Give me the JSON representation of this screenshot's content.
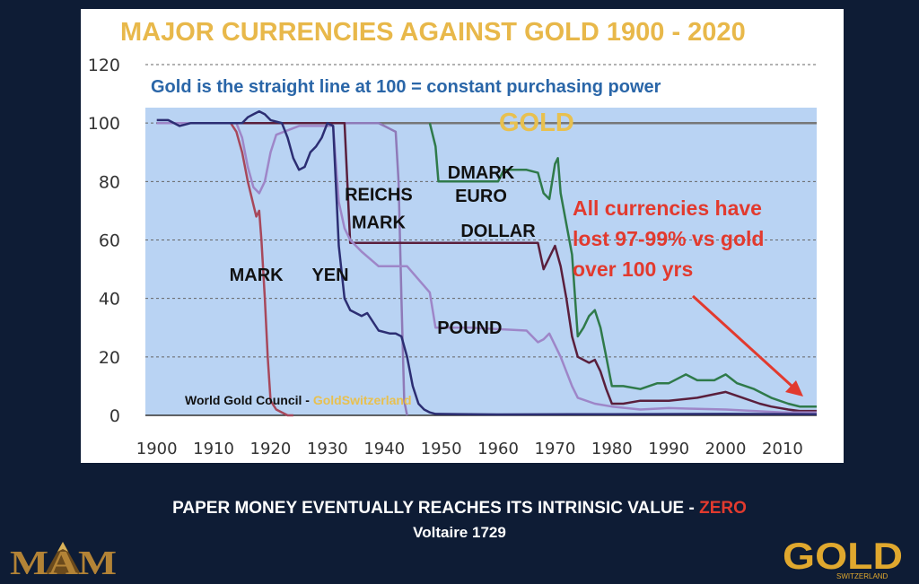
{
  "colors": {
    "background": "#0e1c35",
    "plot_background": "#b9d3f3",
    "title": "#e8b84a",
    "subtitle": "#2a66a8",
    "annotation": "#e23a2e",
    "gold_line": "#777777",
    "gold_label": "#e8c04f"
  },
  "caption": {
    "main": "PAPER MONEY EVENTUALLY REACHES ITS INTRINSIC VALUE - ",
    "highlight": "ZERO",
    "attribution": "Voltaire 1729"
  },
  "logos": {
    "left": {
      "name": "mam-logo",
      "text": "MAM"
    },
    "right": {
      "name": "goldswitzerland-logo",
      "text": "GOLD",
      "subtext": "SWITZERLAND"
    }
  },
  "chart_data": {
    "type": "line",
    "title": "MAJOR CURRENCIES AGAINST GOLD  1900 - 2020",
    "subtitle": "Gold is the straight line at 100 = constant purchasing power",
    "xlim": [
      1898,
      2016
    ],
    "ylim": [
      0,
      120
    ],
    "x_ticks": [
      "1900",
      "1910",
      "1920",
      "1930",
      "1940",
      "1950",
      "1960",
      "1970",
      "1980",
      "1990",
      "2000",
      "2010"
    ],
    "y_ticks": [
      "0",
      "20",
      "40",
      "60",
      "80",
      "100",
      "120"
    ],
    "grid": "horizontal dashed",
    "annotation": [
      "All currencies have",
      "lost 97-99% vs gold",
      "over 100 yrs"
    ],
    "source": {
      "prefix": "World Gold Council - ",
      "brand": "GoldSwitzerland"
    },
    "series": [
      {
        "name": "GOLD",
        "color": "#777777",
        "width": 2.5,
        "points": [
          [
            1900,
            100
          ],
          [
            2016,
            100
          ]
        ]
      },
      {
        "name": "MARK",
        "color": "#a7485b",
        "width": 2.5,
        "points": [
          [
            1900,
            100
          ],
          [
            1913,
            100
          ],
          [
            1914,
            97
          ],
          [
            1915,
            90
          ],
          [
            1916,
            80
          ],
          [
            1917,
            72
          ],
          [
            1917.5,
            68
          ],
          [
            1918,
            70
          ],
          [
            1918.4,
            60
          ],
          [
            1919,
            40
          ],
          [
            1919.5,
            20
          ],
          [
            1920,
            5
          ],
          [
            1921,
            2
          ],
          [
            1922,
            1
          ],
          [
            1923,
            0
          ],
          [
            1924,
            0
          ]
        ]
      },
      {
        "name": "REICHS MARK",
        "color": "#8f7ab8",
        "width": 2.5,
        "points": [
          [
            1924,
            100
          ],
          [
            1938,
            100
          ],
          [
            1939,
            100
          ],
          [
            1940,
            99
          ],
          [
            1941,
            98
          ],
          [
            1942,
            97
          ],
          [
            1942.5,
            80
          ],
          [
            1943,
            40
          ],
          [
            1943.5,
            5
          ],
          [
            1944,
            0
          ]
        ]
      },
      {
        "name": "DMARK EURO",
        "color": "#2f7a4a",
        "width": 2.5,
        "points": [
          [
            1948,
            100
          ],
          [
            1949,
            92
          ],
          [
            1949.5,
            80
          ],
          [
            1955,
            80
          ],
          [
            1960,
            80
          ],
          [
            1961,
            84
          ],
          [
            1965,
            84
          ],
          [
            1967,
            83
          ],
          [
            1968,
            76
          ],
          [
            1969,
            74
          ],
          [
            1970,
            86
          ],
          [
            1970.5,
            88
          ],
          [
            1971,
            76
          ],
          [
            1973,
            55
          ],
          [
            1974,
            27
          ],
          [
            1975,
            30
          ],
          [
            1976,
            34
          ],
          [
            1977,
            36
          ],
          [
            1978,
            30
          ],
          [
            1979,
            20
          ],
          [
            1980,
            10
          ],
          [
            1982,
            10
          ],
          [
            1985,
            9
          ],
          [
            1988,
            11
          ],
          [
            1990,
            11
          ],
          [
            1993,
            14
          ],
          [
            1995,
            12
          ],
          [
            1998,
            12
          ],
          [
            2000,
            14
          ],
          [
            2002,
            11
          ],
          [
            2005,
            9
          ],
          [
            2008,
            6
          ],
          [
            2011,
            4
          ],
          [
            2013,
            3
          ],
          [
            2016,
            3
          ]
        ]
      },
      {
        "name": "DOLLAR",
        "color": "#5a1f3c",
        "width": 2.5,
        "points": [
          [
            1900,
            100
          ],
          [
            1933,
            100
          ],
          [
            1934,
            59
          ],
          [
            1940,
            59
          ],
          [
            1950,
            59
          ],
          [
            1960,
            59
          ],
          [
            1967,
            59
          ],
          [
            1968,
            50
          ],
          [
            1969,
            54
          ],
          [
            1970,
            58
          ],
          [
            1971,
            51
          ],
          [
            1972,
            40
          ],
          [
            1973,
            27
          ],
          [
            1974,
            20
          ],
          [
            1976,
            18
          ],
          [
            1977,
            19
          ],
          [
            1978,
            15
          ],
          [
            1979,
            9
          ],
          [
            1980,
            4
          ],
          [
            1982,
            4
          ],
          [
            1985,
            5
          ],
          [
            1990,
            5
          ],
          [
            1995,
            6
          ],
          [
            2000,
            8
          ],
          [
            2003,
            6
          ],
          [
            2006,
            4
          ],
          [
            2008,
            3
          ],
          [
            2011,
            2
          ],
          [
            2013,
            1.5
          ],
          [
            2016,
            1.5
          ]
        ]
      },
      {
        "name": "POUND",
        "color": "#9e86c8",
        "width": 2.5,
        "points": [
          [
            1900,
            100
          ],
          [
            1914,
            100
          ],
          [
            1915,
            95
          ],
          [
            1916,
            85
          ],
          [
            1917,
            78
          ],
          [
            1918,
            76
          ],
          [
            1919,
            80
          ],
          [
            1920,
            90
          ],
          [
            1921,
            96
          ],
          [
            1925,
            99
          ],
          [
            1931,
            99
          ],
          [
            1932,
            73
          ],
          [
            1933,
            64
          ],
          [
            1934,
            60
          ],
          [
            1936,
            56
          ],
          [
            1939,
            51
          ],
          [
            1944,
            51
          ],
          [
            1948,
            42
          ],
          [
            1949,
            30
          ],
          [
            1955,
            30
          ],
          [
            1965,
            29
          ],
          [
            1967,
            25
          ],
          [
            1968,
            26
          ],
          [
            1969,
            28
          ],
          [
            1971,
            20
          ],
          [
            1973,
            10
          ],
          [
            1974,
            6
          ],
          [
            1977,
            4
          ],
          [
            1980,
            3
          ],
          [
            1985,
            2
          ],
          [
            1990,
            2.5
          ],
          [
            2000,
            2
          ],
          [
            2005,
            1.5
          ],
          [
            2010,
            1
          ],
          [
            2016,
            1
          ]
        ]
      },
      {
        "name": "YEN",
        "color": "#2c2e73",
        "width": 2.5,
        "points": [
          [
            1900,
            101
          ],
          [
            1902,
            101
          ],
          [
            1904,
            99
          ],
          [
            1906,
            100
          ],
          [
            1910,
            100
          ],
          [
            1915,
            100
          ],
          [
            1916,
            102
          ],
          [
            1917,
            103
          ],
          [
            1918,
            104
          ],
          [
            1919,
            103
          ],
          [
            1920,
            101
          ],
          [
            1922,
            100
          ],
          [
            1923,
            95
          ],
          [
            1924,
            88
          ],
          [
            1925,
            84
          ],
          [
            1926,
            85
          ],
          [
            1927,
            90
          ],
          [
            1928,
            92
          ],
          [
            1929,
            95
          ],
          [
            1930,
            100
          ],
          [
            1931,
            99
          ],
          [
            1932,
            58
          ],
          [
            1933,
            40
          ],
          [
            1934,
            36
          ],
          [
            1936,
            34
          ],
          [
            1937,
            35
          ],
          [
            1939,
            29
          ],
          [
            1941,
            28
          ],
          [
            1942,
            28
          ],
          [
            1943,
            27
          ],
          [
            1944,
            20
          ],
          [
            1945,
            10
          ],
          [
            1946,
            4
          ],
          [
            1947,
            2
          ],
          [
            1948,
            1
          ],
          [
            1949,
            0.5
          ],
          [
            1960,
            0.3
          ],
          [
            1980,
            0.4
          ],
          [
            2000,
            0.5
          ],
          [
            2016,
            0.4
          ]
        ]
      }
    ],
    "series_labels": [
      {
        "name": "mark",
        "text": "MARK",
        "x": 1917.5,
        "y": 46
      },
      {
        "name": "yen",
        "text": "YEN",
        "x": 1930.5,
        "y": 46
      },
      {
        "name": "reichs",
        "text": "REICHS",
        "x": 1939,
        "y": 73.5
      },
      {
        "name": "reichs-mark",
        "text": "MARK",
        "x": 1939,
        "y": 64
      },
      {
        "name": "dmark",
        "text": "DMARK",
        "x": 1957,
        "y": 81
      },
      {
        "name": "euro",
        "text": "EURO",
        "x": 1957,
        "y": 73
      },
      {
        "name": "dollar",
        "text": "DOLLAR",
        "x": 1960,
        "y": 61
      },
      {
        "name": "pound",
        "text": "POUND",
        "x": 1955,
        "y": 28
      }
    ]
  }
}
